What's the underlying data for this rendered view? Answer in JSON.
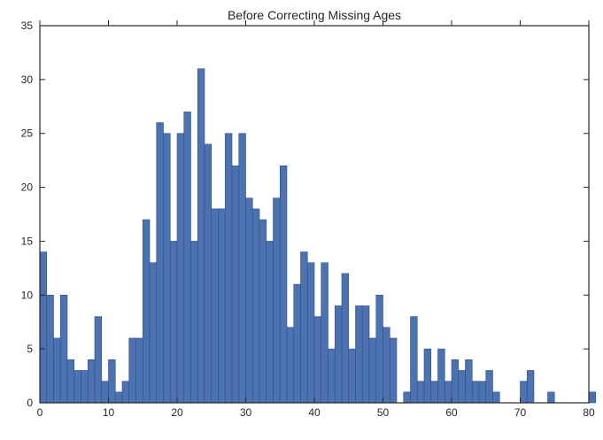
{
  "chart_data": {
    "type": "bar",
    "title": "Before Correcting Missing Ages",
    "xlabel": "",
    "ylabel": "",
    "xlim": [
      0,
      80
    ],
    "ylim": [
      0,
      35
    ],
    "xticks": [
      "0",
      "10",
      "20",
      "30",
      "40",
      "50",
      "60",
      "70",
      "80"
    ],
    "yticks": [
      "0",
      "5",
      "10",
      "15",
      "20",
      "25",
      "30",
      "35"
    ],
    "bin_width": 1,
    "bin_start": 0,
    "values": [
      14,
      10,
      6,
      10,
      4,
      3,
      3,
      4,
      8,
      2,
      4,
      1,
      2,
      6,
      6,
      17,
      13,
      26,
      25,
      15,
      25,
      27,
      15,
      31,
      24,
      18,
      18,
      25,
      22,
      25,
      19,
      18,
      17,
      15,
      19,
      22,
      7,
      11,
      14,
      13,
      8,
      13,
      5,
      9,
      12,
      5,
      9,
      9,
      6,
      10,
      7,
      6,
      0,
      1,
      8,
      2,
      5,
      2,
      5,
      2,
      4,
      3,
      4,
      2,
      2,
      3,
      1,
      0,
      0,
      0,
      2,
      3,
      0,
      0,
      1,
      0,
      0,
      0,
      0,
      0,
      1
    ],
    "grid": false,
    "bar_color": "#4c72b0",
    "edge_color": "#2f4f8a"
  }
}
